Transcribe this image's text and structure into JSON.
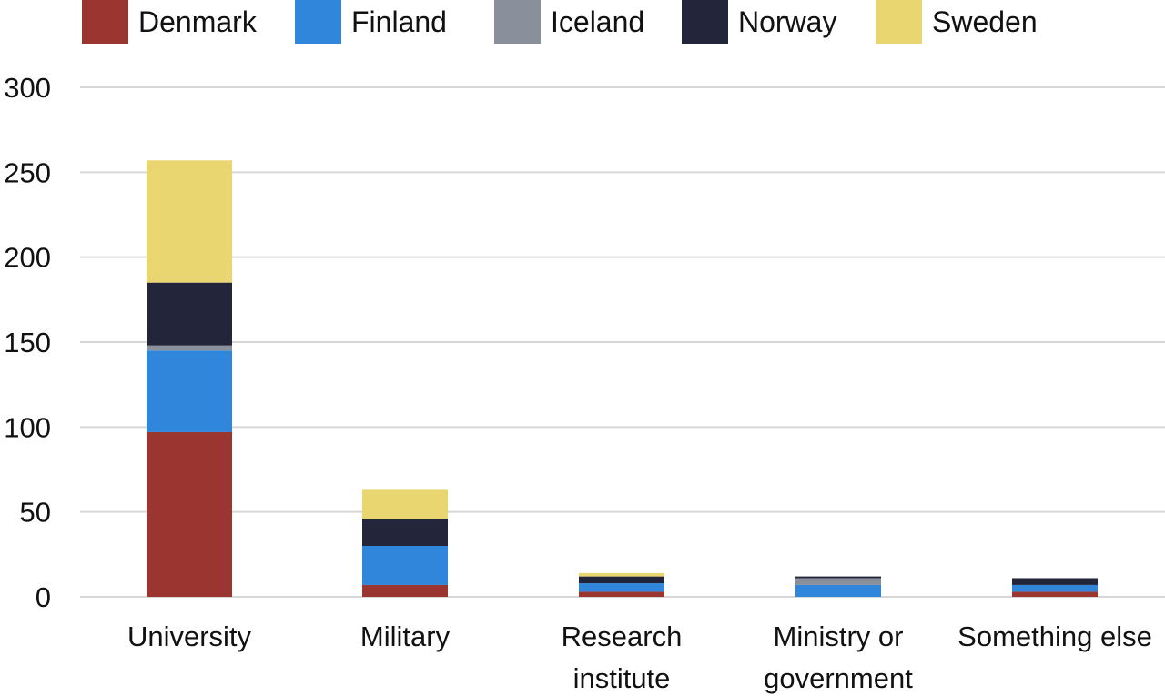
{
  "chart_data": {
    "type": "bar",
    "stacked": true,
    "categories": [
      [
        "University"
      ],
      [
        "Military"
      ],
      [
        "Research",
        "institute"
      ],
      [
        "Ministry or",
        "government"
      ],
      [
        "Something else"
      ]
    ],
    "series": [
      {
        "name": "Denmark",
        "color": "#9b3530",
        "values": [
          97,
          7,
          3,
          0,
          3
        ]
      },
      {
        "name": "Finland",
        "color": "#2f86db",
        "values": [
          48,
          23,
          5,
          7,
          4
        ]
      },
      {
        "name": "Iceland",
        "color": "#8a8f9c",
        "values": [
          3,
          0,
          0,
          4,
          0
        ]
      },
      {
        "name": "Norway",
        "color": "#23263a",
        "values": [
          37,
          16,
          4,
          1,
          4
        ]
      },
      {
        "name": "Sweden",
        "color": "#ead671",
        "values": [
          72,
          17,
          2,
          0,
          0
        ]
      }
    ],
    "y_ticks": [
      0,
      50,
      100,
      150,
      200,
      250,
      300
    ],
    "ylim": [
      0,
      300
    ],
    "title": "",
    "xlabel": "",
    "ylabel": "",
    "grid": true,
    "legend_position": "top"
  }
}
